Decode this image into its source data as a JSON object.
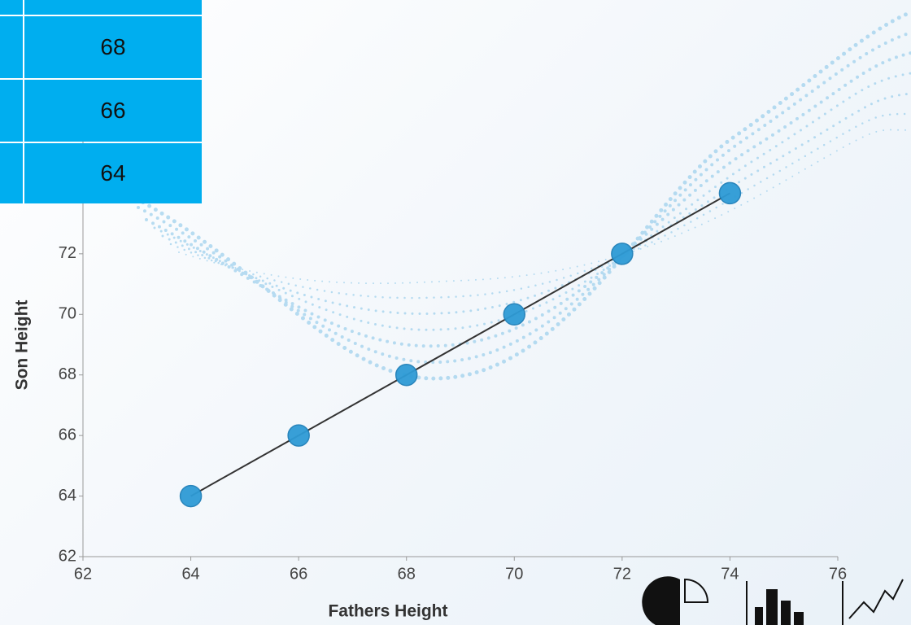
{
  "table": {
    "rows": [
      [
        68
      ],
      [
        66
      ],
      [
        64
      ]
    ]
  },
  "chart_data": {
    "type": "scatter",
    "x_label": "Fathers Height",
    "y_label": "Son Height",
    "series": [
      {
        "color": "#2e9bd6",
        "x": [
          64,
          66,
          68,
          70,
          72,
          74
        ],
        "values": [
          64,
          66,
          68,
          70,
          72,
          74
        ]
      }
    ],
    "trendline": true,
    "trendline_color": "#333333",
    "xlim": [
      62,
      76
    ],
    "xticks": [
      62,
      64,
      66,
      68,
      70,
      72,
      74,
      76
    ],
    "ylim": [
      62,
      76
    ],
    "yticks": [
      62,
      64,
      66,
      68,
      70,
      72,
      74,
      76
    ]
  }
}
